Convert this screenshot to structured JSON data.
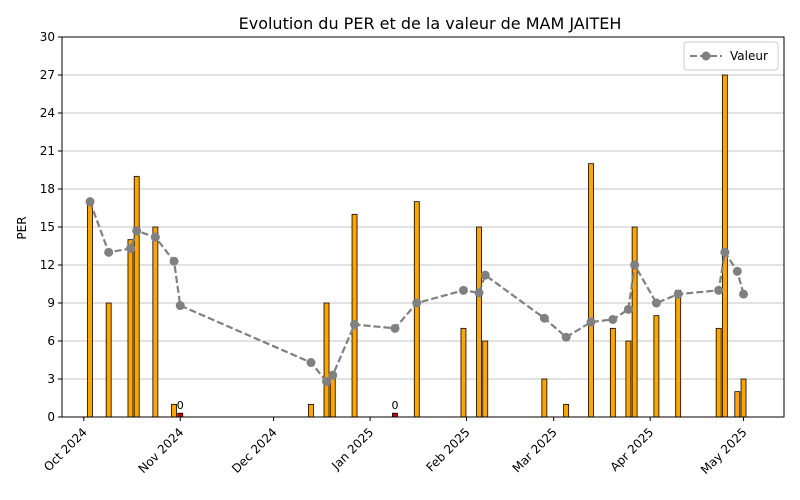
{
  "chart_data": {
    "type": "bar",
    "title": "Evolution du PER et de la valeur de MAM JAITEH",
    "ylabel": "PER",
    "xlabel": "",
    "ylim": [
      0,
      30
    ],
    "yticks": [
      0,
      3,
      6,
      9,
      12,
      15,
      18,
      21,
      24,
      27,
      30
    ],
    "xlim": [
      "2024-09-24",
      "2025-05-14"
    ],
    "xticks": [
      {
        "date": "2024-10-01",
        "label": "Oct 2024"
      },
      {
        "date": "2024-11-01",
        "label": "Nov 2024"
      },
      {
        "date": "2024-12-01",
        "label": "Dec 2024"
      },
      {
        "date": "2025-01-01",
        "label": "Jan 2025"
      },
      {
        "date": "2025-02-01",
        "label": "Feb 2025"
      },
      {
        "date": "2025-03-01",
        "label": "Mar 2025"
      },
      {
        "date": "2025-04-01",
        "label": "Apr 2025"
      },
      {
        "date": "2025-05-01",
        "label": "May 2025"
      }
    ],
    "grid": "y",
    "legend_position": "top-right",
    "colors": {
      "bar": "#FFA500",
      "bar_zero": "#CC0000",
      "bar_edge": "#000000",
      "line": "#808080"
    },
    "bars": [
      {
        "date": "2024-10-03",
        "value": 17
      },
      {
        "date": "2024-10-09",
        "value": 9
      },
      {
        "date": "2024-10-16",
        "value": 14
      },
      {
        "date": "2024-10-18",
        "value": 19
      },
      {
        "date": "2024-10-24",
        "value": 15
      },
      {
        "date": "2024-10-30",
        "value": 1
      },
      {
        "date": "2024-11-01",
        "value": 0.3,
        "label": "0"
      },
      {
        "date": "2024-12-13",
        "value": 1
      },
      {
        "date": "2024-12-18",
        "value": 9
      },
      {
        "date": "2024-12-20",
        "value": 3
      },
      {
        "date": "2024-12-27",
        "value": 16
      },
      {
        "date": "2025-01-09",
        "value": 0.3,
        "label": "0"
      },
      {
        "date": "2025-01-16",
        "value": 17
      },
      {
        "date": "2025-01-31",
        "value": 7
      },
      {
        "date": "2025-02-05",
        "value": 15
      },
      {
        "date": "2025-02-07",
        "value": 6
      },
      {
        "date": "2025-02-26",
        "value": 3
      },
      {
        "date": "2025-03-05",
        "value": 1
      },
      {
        "date": "2025-03-13",
        "value": 20
      },
      {
        "date": "2025-03-20",
        "value": 7
      },
      {
        "date": "2025-03-25",
        "value": 6
      },
      {
        "date": "2025-03-27",
        "value": 15
      },
      {
        "date": "2025-04-03",
        "value": 8
      },
      {
        "date": "2025-04-10",
        "value": 10
      },
      {
        "date": "2025-04-23",
        "value": 7
      },
      {
        "date": "2025-04-25",
        "value": 27
      },
      {
        "date": "2025-04-29",
        "value": 2
      },
      {
        "date": "2025-05-01",
        "value": 3
      }
    ],
    "series": [
      {
        "name": "Valeur",
        "points": [
          {
            "date": "2024-10-03",
            "value": 17.0
          },
          {
            "date": "2024-10-09",
            "value": 13.0
          },
          {
            "date": "2024-10-16",
            "value": 13.3
          },
          {
            "date": "2024-10-18",
            "value": 14.7
          },
          {
            "date": "2024-10-24",
            "value": 14.2
          },
          {
            "date": "2024-10-30",
            "value": 12.3
          },
          {
            "date": "2024-11-01",
            "value": 8.8
          },
          {
            "date": "2024-12-13",
            "value": 4.3
          },
          {
            "date": "2024-12-18",
            "value": 2.8
          },
          {
            "date": "2024-12-20",
            "value": 3.3
          },
          {
            "date": "2024-12-27",
            "value": 7.3
          },
          {
            "date": "2025-01-09",
            "value": 7.0
          },
          {
            "date": "2025-01-16",
            "value": 9.0
          },
          {
            "date": "2025-01-31",
            "value": 10.0
          },
          {
            "date": "2025-02-05",
            "value": 9.8
          },
          {
            "date": "2025-02-07",
            "value": 11.2
          },
          {
            "date": "2025-02-26",
            "value": 7.8
          },
          {
            "date": "2025-03-05",
            "value": 6.3
          },
          {
            "date": "2025-03-13",
            "value": 7.5
          },
          {
            "date": "2025-03-20",
            "value": 7.7
          },
          {
            "date": "2025-03-25",
            "value": 8.5
          },
          {
            "date": "2025-03-27",
            "value": 12.0
          },
          {
            "date": "2025-04-03",
            "value": 9.0
          },
          {
            "date": "2025-04-10",
            "value": 9.7
          },
          {
            "date": "2025-04-23",
            "value": 10.0
          },
          {
            "date": "2025-04-25",
            "value": 13.0
          },
          {
            "date": "2025-04-29",
            "value": 11.5
          },
          {
            "date": "2025-05-01",
            "value": 9.7
          }
        ]
      }
    ]
  }
}
